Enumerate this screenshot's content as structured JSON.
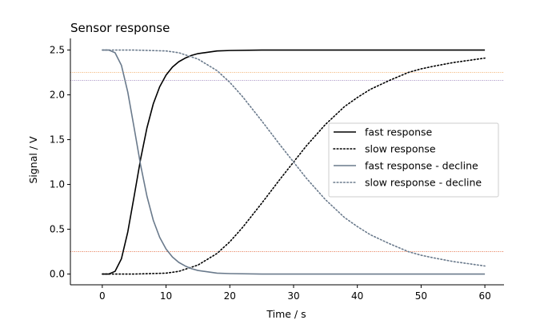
{
  "chart_data": {
    "type": "line",
    "title": "Sensor response",
    "xlabel": "Time / s",
    "ylabel": "Signal / V",
    "xlim": [
      -5,
      63
    ],
    "ylim": [
      -0.12,
      2.63
    ],
    "xticks": [
      0,
      10,
      20,
      30,
      40,
      50,
      60
    ],
    "yticks": [
      0.0,
      0.5,
      1.0,
      1.5,
      2.0,
      2.5
    ],
    "xtick_labels": [
      "0",
      "10",
      "20",
      "30",
      "40",
      "50",
      "60"
    ],
    "ytick_labels": [
      "0.0",
      "0.5",
      "1.0",
      "1.5",
      "2.0",
      "2.5"
    ],
    "grid": false,
    "legend_position": "center-right",
    "series": [
      {
        "name": "fast response",
        "style": "solid",
        "color": "#000000",
        "x": [
          0,
          1,
          2,
          3,
          4,
          5,
          6,
          7,
          8,
          9,
          10,
          11,
          12,
          13,
          14,
          15,
          16,
          17,
          18,
          20,
          25,
          30,
          40,
          50,
          60
        ],
        "y": [
          0.0,
          0.0,
          0.03,
          0.17,
          0.47,
          0.87,
          1.28,
          1.63,
          1.9,
          2.09,
          2.22,
          2.31,
          2.37,
          2.41,
          2.44,
          2.46,
          2.47,
          2.48,
          2.49,
          2.495,
          2.5,
          2.5,
          2.5,
          2.5,
          2.5
        ]
      },
      {
        "name": "slow response",
        "style": "dotted",
        "color": "#000000",
        "x": [
          0,
          5,
          10,
          12,
          15,
          18,
          20,
          22,
          25,
          28,
          30,
          32,
          35,
          38,
          40,
          42,
          45,
          48,
          50,
          52,
          55,
          58,
          60
        ],
        "y": [
          0.0,
          0.0,
          0.01,
          0.03,
          0.1,
          0.23,
          0.36,
          0.52,
          0.79,
          1.07,
          1.25,
          1.43,
          1.67,
          1.87,
          1.97,
          2.06,
          2.16,
          2.25,
          2.29,
          2.32,
          2.36,
          2.39,
          2.41
        ]
      },
      {
        "name": "fast response - decline",
        "style": "solid",
        "color": "#6a7a8c",
        "x": [
          0,
          1,
          2,
          3,
          4,
          5,
          6,
          7,
          8,
          9,
          10,
          11,
          12,
          13,
          14,
          15,
          16,
          17,
          18,
          20,
          25,
          30,
          40,
          50,
          60
        ],
        "y": [
          2.5,
          2.5,
          2.47,
          2.33,
          2.03,
          1.63,
          1.22,
          0.87,
          0.6,
          0.41,
          0.28,
          0.19,
          0.13,
          0.09,
          0.06,
          0.04,
          0.03,
          0.02,
          0.01,
          0.005,
          0.0,
          0.0,
          0.0,
          0.0,
          0.0
        ]
      },
      {
        "name": "slow response - decline",
        "style": "dotted",
        "color": "#6a7a8c",
        "x": [
          0,
          5,
          10,
          12,
          15,
          18,
          20,
          22,
          25,
          28,
          30,
          32,
          35,
          38,
          40,
          42,
          45,
          48,
          50,
          52,
          55,
          58,
          60
        ],
        "y": [
          2.5,
          2.5,
          2.49,
          2.47,
          2.4,
          2.27,
          2.14,
          1.98,
          1.71,
          1.43,
          1.25,
          1.07,
          0.83,
          0.63,
          0.53,
          0.44,
          0.34,
          0.25,
          0.21,
          0.18,
          0.14,
          0.11,
          0.09
        ]
      }
    ],
    "reference_lines": [
      {
        "y": 2.25,
        "color": "#f0a050",
        "style": "dotted"
      },
      {
        "y": 2.16,
        "color": "#8060a8",
        "style": "dotted"
      },
      {
        "y": 0.25,
        "color": "#e05a2a",
        "style": "dotted"
      }
    ]
  }
}
